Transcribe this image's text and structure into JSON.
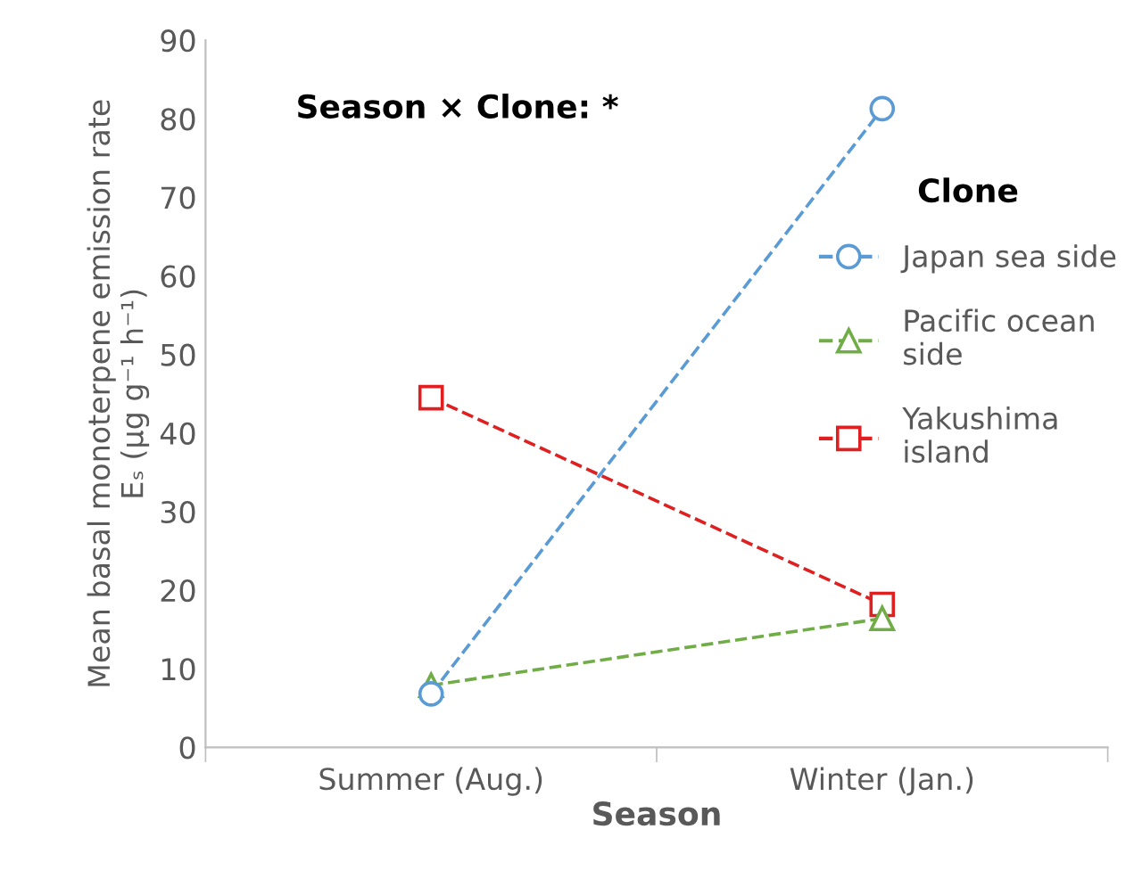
{
  "chart_data": {
    "type": "line",
    "categories": [
      "Summer (Aug.)",
      "Winter (Jan.)"
    ],
    "xlabel": "Season",
    "ylabel": "Mean basal monoterpene emission rate\nEₛ (µg g⁻¹ h⁻¹)",
    "legend_title": "Clone",
    "annotations": [
      "Season × Clone: *"
    ],
    "series": [
      {
        "name": "Japan sea side",
        "color": "#5b9bd5",
        "values": [
          6.8,
          81.3
        ],
        "marker": "circle"
      },
      {
        "name": "Pacific ocean\nside",
        "color": "#70ad47",
        "values": [
          7.9,
          16.4
        ],
        "marker": "triangle"
      },
      {
        "name": "Yakushima\nisland",
        "color": "#e02020",
        "values": [
          44.5,
          18.2
        ],
        "marker": "square"
      }
    ],
    "ylim": [
      0,
      90
    ],
    "yticks": [
      0,
      10,
      20,
      30,
      40,
      50,
      60,
      70,
      80,
      90
    ],
    "line_style": "dashed",
    "grid": false,
    "legend": "right"
  }
}
